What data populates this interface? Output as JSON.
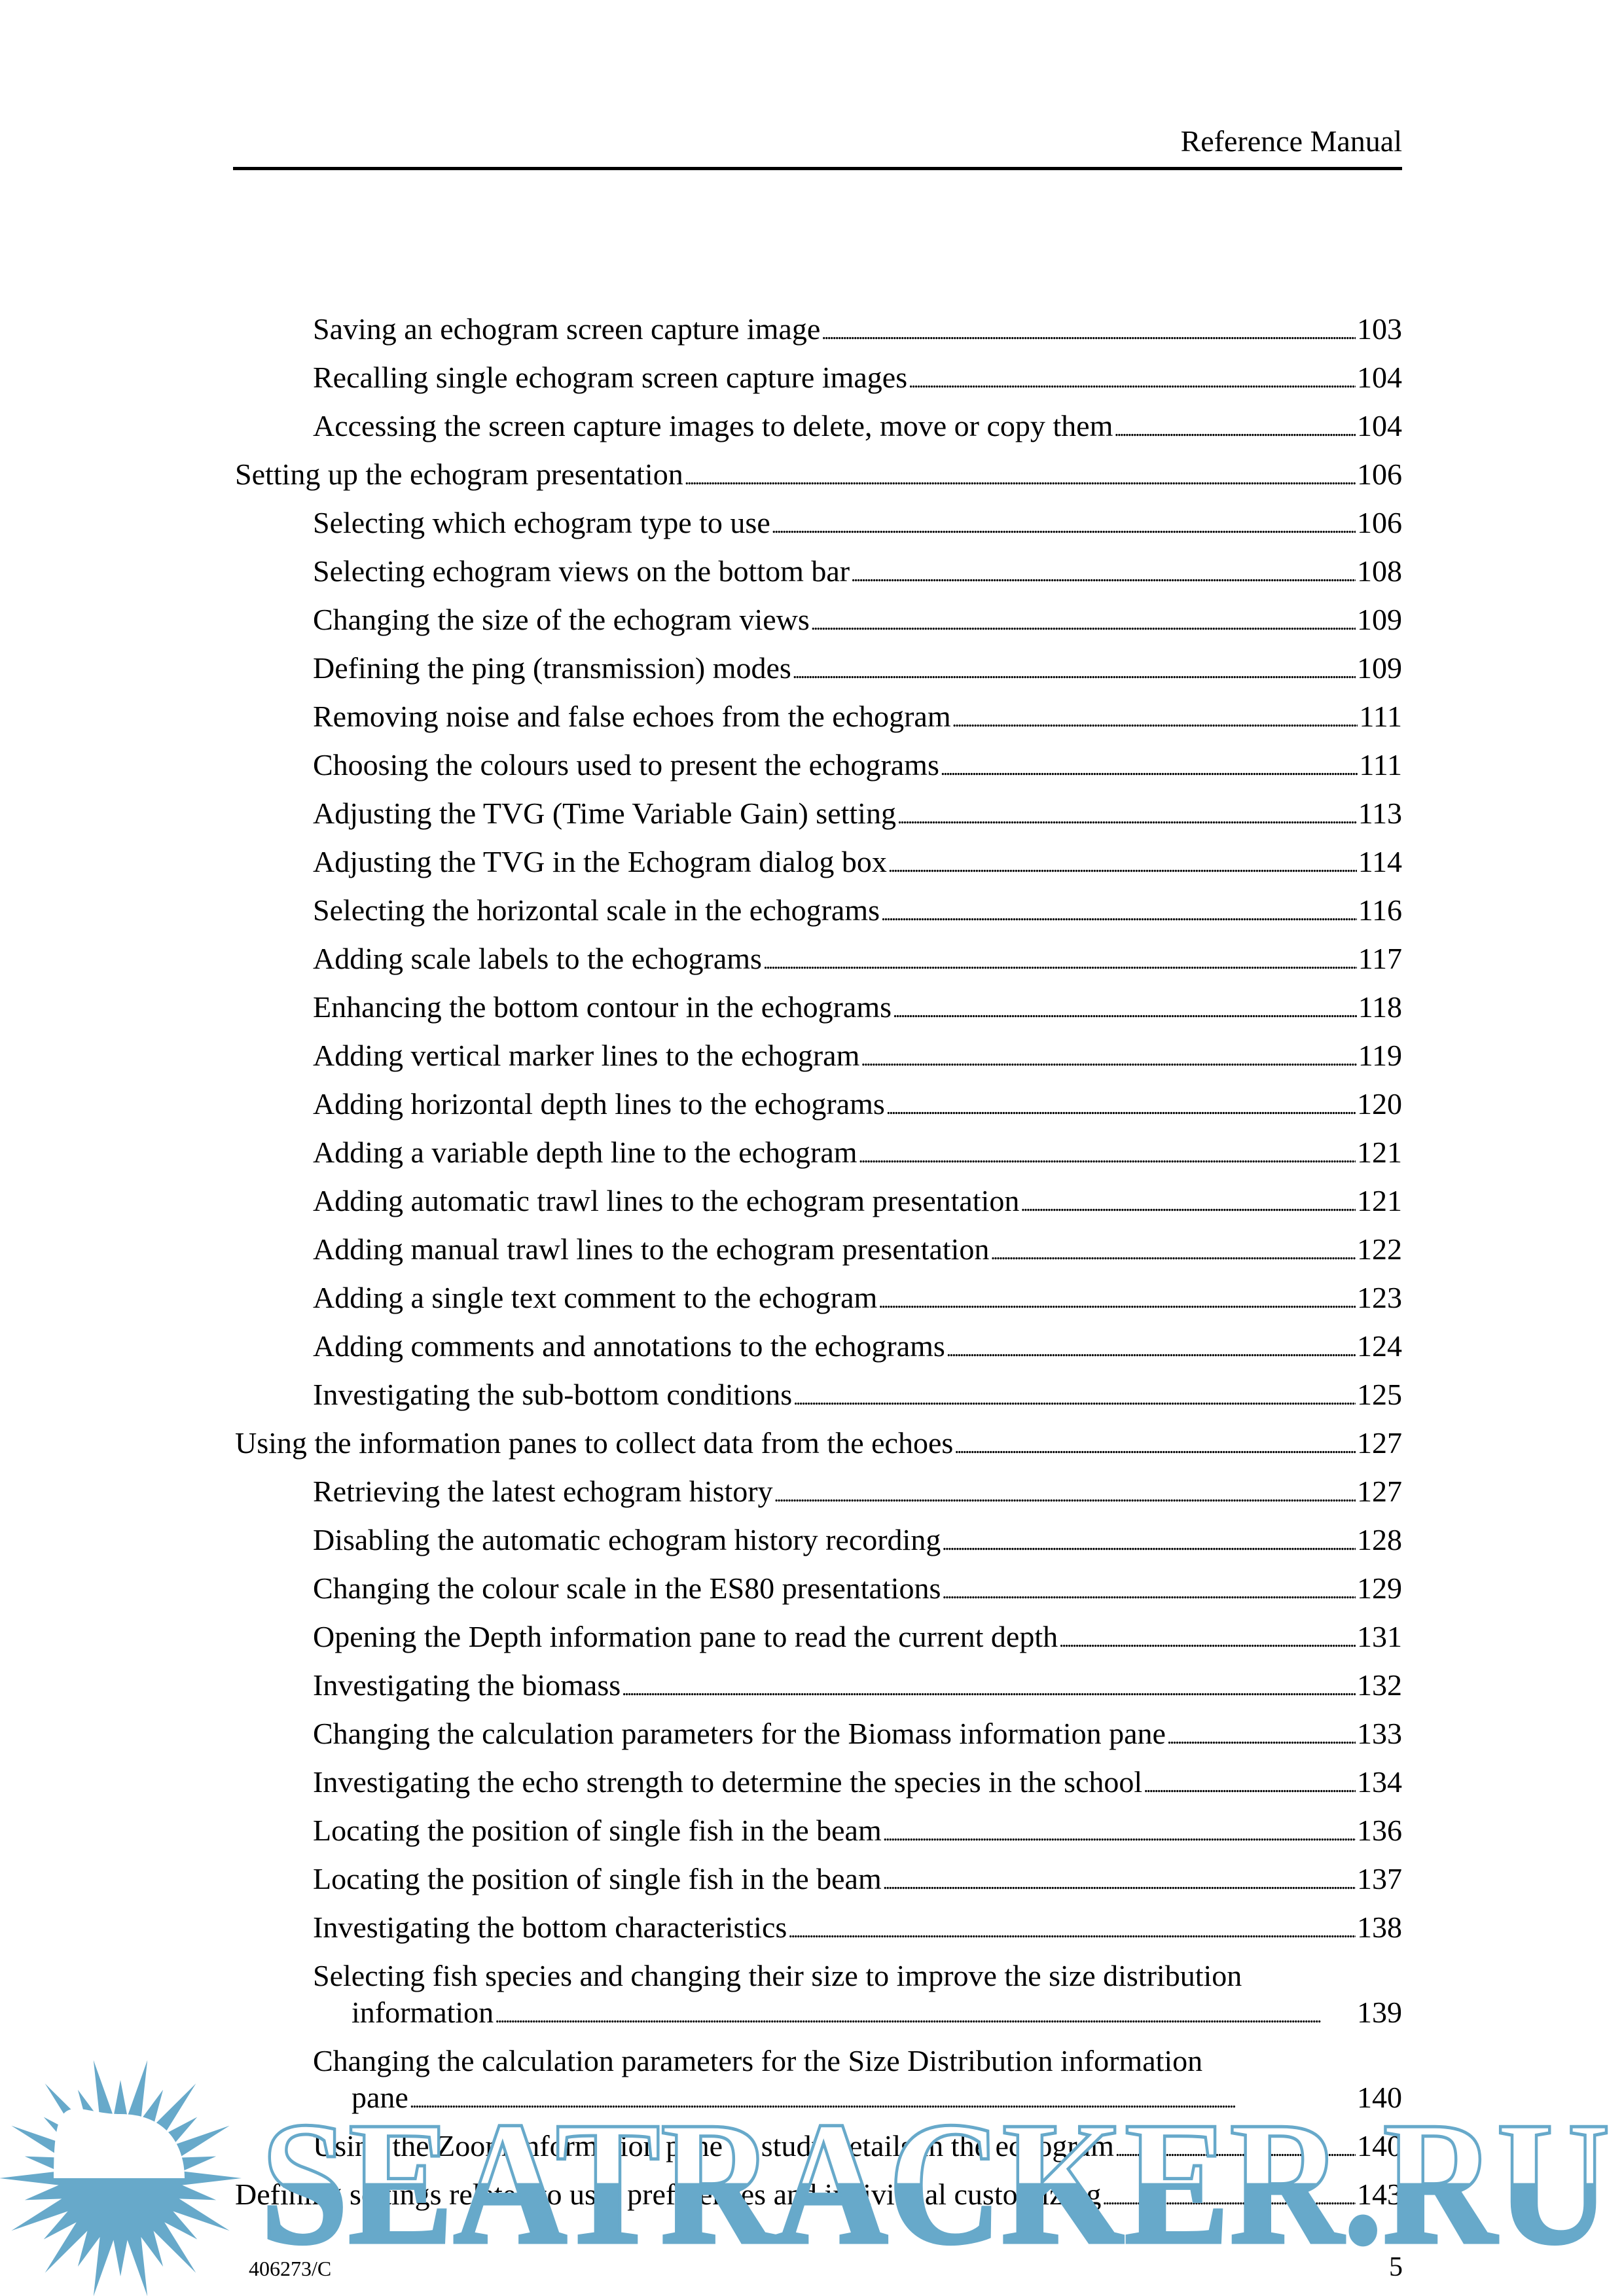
{
  "header": {
    "title": "Reference Manual"
  },
  "toc": [
    {
      "level": 2,
      "lines": [
        "Saving an echogram screen capture image"
      ],
      "page": "103"
    },
    {
      "level": 2,
      "lines": [
        "Recalling single echogram screen capture images"
      ],
      "page": "104"
    },
    {
      "level": 2,
      "lines": [
        "Accessing the screen capture images to delete, move or copy them"
      ],
      "page": "104"
    },
    {
      "level": 1,
      "lines": [
        "Setting up the echogram presentation"
      ],
      "page": "106"
    },
    {
      "level": 2,
      "lines": [
        "Selecting which echogram type to use"
      ],
      "page": "106"
    },
    {
      "level": 2,
      "lines": [
        "Selecting echogram views on the bottom bar"
      ],
      "page": "108"
    },
    {
      "level": 2,
      "lines": [
        "Changing the size of the echogram views"
      ],
      "page": "109"
    },
    {
      "level": 2,
      "lines": [
        "Defining the ping (transmission) modes"
      ],
      "page": "109"
    },
    {
      "level": 2,
      "lines": [
        "Removing noise and false echoes from the echogram"
      ],
      "page": "111"
    },
    {
      "level": 2,
      "lines": [
        "Choosing the colours used to present the echograms"
      ],
      "page": "111"
    },
    {
      "level": 2,
      "lines": [
        "Adjusting the TVG (Time Variable Gain) setting"
      ],
      "page": "113"
    },
    {
      "level": 2,
      "lines": [
        "Adjusting the TVG in the Echogram dialog box"
      ],
      "page": "114"
    },
    {
      "level": 2,
      "lines": [
        "Selecting the horizontal scale in the echograms"
      ],
      "page": "116"
    },
    {
      "level": 2,
      "lines": [
        "Adding scale labels to the echograms"
      ],
      "page": "117"
    },
    {
      "level": 2,
      "lines": [
        "Enhancing the bottom contour in the echograms"
      ],
      "page": "118"
    },
    {
      "level": 2,
      "lines": [
        "Adding vertical marker lines to the echogram"
      ],
      "page": "119"
    },
    {
      "level": 2,
      "lines": [
        "Adding horizontal depth lines to the echograms"
      ],
      "page": "120"
    },
    {
      "level": 2,
      "lines": [
        "Adding a variable depth line to the echogram"
      ],
      "page": "121"
    },
    {
      "level": 2,
      "lines": [
        "Adding automatic trawl lines to the echogram presentation"
      ],
      "page": "121"
    },
    {
      "level": 2,
      "lines": [
        "Adding manual trawl lines to the echogram presentation"
      ],
      "page": "122"
    },
    {
      "level": 2,
      "lines": [
        "Adding a single text comment to the echogram"
      ],
      "page": "123"
    },
    {
      "level": 2,
      "lines": [
        "Adding comments and annotations to the echograms"
      ],
      "page": "124"
    },
    {
      "level": 2,
      "lines": [
        "Investigating the sub-bottom conditions"
      ],
      "page": "125"
    },
    {
      "level": 1,
      "lines": [
        "Using the information panes to collect data from the echoes"
      ],
      "page": "127"
    },
    {
      "level": 2,
      "lines": [
        "Retrieving the latest echogram history"
      ],
      "page": "127"
    },
    {
      "level": 2,
      "lines": [
        "Disabling the automatic echogram history recording"
      ],
      "page": "128"
    },
    {
      "level": 2,
      "lines": [
        "Changing the colour scale in the ES80 presentations"
      ],
      "page": "129"
    },
    {
      "level": 2,
      "lines": [
        "Opening the Depth information pane to read the current depth"
      ],
      "page": "131"
    },
    {
      "level": 2,
      "lines": [
        "Investigating the biomass"
      ],
      "page": "132"
    },
    {
      "level": 2,
      "lines": [
        "Changing the calculation parameters for the Biomass information pane"
      ],
      "page": "133"
    },
    {
      "level": 2,
      "lines": [
        "Investigating the echo strength to determine the species in the school"
      ],
      "page": "134"
    },
    {
      "level": 2,
      "lines": [
        "Locating the position of single fish in the beam"
      ],
      "page": "136"
    },
    {
      "level": 2,
      "lines": [
        "Locating the position of single fish in the beam"
      ],
      "page": "137"
    },
    {
      "level": 2,
      "lines": [
        "Investigating the bottom characteristics"
      ],
      "page": "138"
    },
    {
      "level": 2,
      "lines": [
        "Selecting fish species and changing their size to improve the size distribution",
        "information"
      ],
      "page": "139"
    },
    {
      "level": 2,
      "lines": [
        "Changing the calculation parameters for the Size Distribution information",
        "pane"
      ],
      "page": "140"
    },
    {
      "level": 2,
      "lines": [
        "Using the Zoom information pane to study details in the echogram"
      ],
      "page": "140"
    },
    {
      "level": 1,
      "lines": [
        "Defining settings related to user preferences and individual customizing"
      ],
      "page": "143"
    }
  ],
  "footer": {
    "doc_code": "406273/C",
    "page_number": "5"
  },
  "watermark": {
    "text": "SEATRACKER.RU",
    "color": "#67a9ca",
    "icon": "sun-icon"
  }
}
